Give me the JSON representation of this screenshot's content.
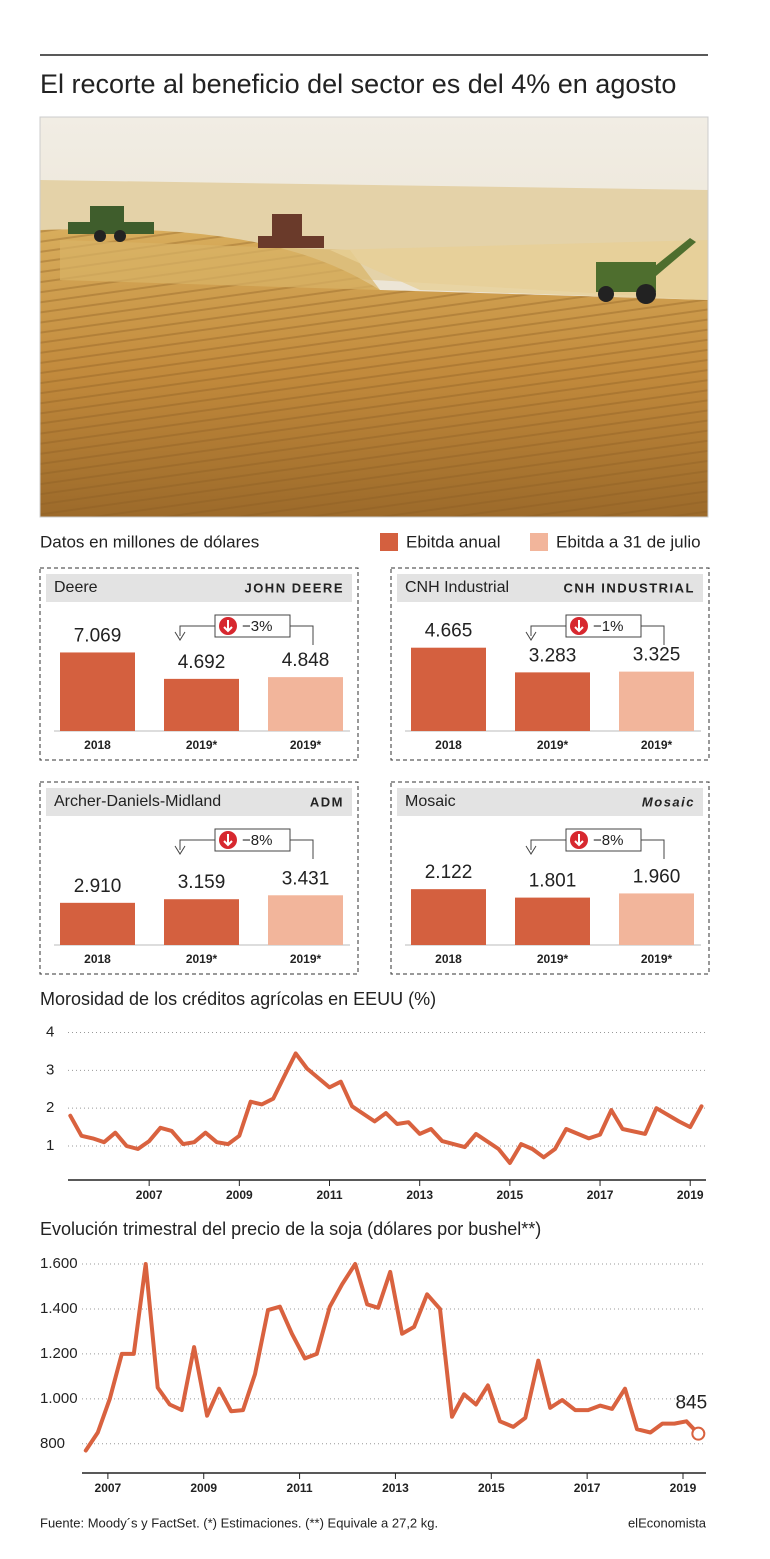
{
  "title": "El recorte al beneficio del sector es del 4% en agosto",
  "note": "Datos en millones de dólares",
  "legend": [
    {
      "name": "Ebitda anual",
      "color": "#d4603f"
    },
    {
      "name": "Ebitda a 31 de julio",
      "color": "#f2b59b"
    }
  ],
  "chart_data": [
    {
      "type": "bar",
      "title": "Deere",
      "logo": "JOHN DEERE",
      "categories": [
        "2018",
        "2019*",
        "2019*"
      ],
      "values": [
        7069,
        4692,
        4848
      ],
      "value_labels": [
        "7.069",
        "4.692",
        "4.848"
      ],
      "colors": [
        "#d4603f",
        "#d4603f",
        "#f2b59b"
      ],
      "annotation": "−3%",
      "ylim": [
        0,
        9000
      ]
    },
    {
      "type": "bar",
      "title": "CNH Industrial",
      "logo": "CNH INDUSTRIAL",
      "categories": [
        "2018",
        "2019*",
        "2019*"
      ],
      "values": [
        4665,
        3283,
        3325
      ],
      "value_labels": [
        "4.665",
        "3.283",
        "3.325"
      ],
      "colors": [
        "#d4603f",
        "#d4603f",
        "#f2b59b"
      ],
      "annotation": "−1%",
      "ylim": [
        0,
        5600
      ]
    },
    {
      "type": "bar",
      "title": "Archer-Daniels-Midland",
      "logo": "ADM",
      "categories": [
        "2018",
        "2019*",
        "2019*"
      ],
      "values": [
        2910,
        3159,
        3431
      ],
      "value_labels": [
        "2.910",
        "3.159",
        "3.431"
      ],
      "colors": [
        "#d4603f",
        "#d4603f",
        "#f2b59b"
      ],
      "annotation": "−8%",
      "ylim": [
        0,
        6900
      ]
    },
    {
      "type": "bar",
      "title": "Mosaic",
      "logo": "Mosaic",
      "categories": [
        "2018",
        "2019*",
        "2019*"
      ],
      "values": [
        2122,
        1801,
        1960
      ],
      "value_labels": [
        "2.122",
        "1.801",
        "1.960"
      ],
      "colors": [
        "#d4603f",
        "#d4603f",
        "#f2b59b"
      ],
      "annotation": "−8%",
      "ylim": [
        0,
        3800
      ]
    },
    {
      "type": "line",
      "title": "Morosidad de los créditos agrícolas en EEUU (%)",
      "x": [
        2005.25,
        2005.5,
        2005.75,
        2006,
        2006.25,
        2006.5,
        2006.75,
        2007,
        2007.25,
        2007.5,
        2007.75,
        2008,
        2008.25,
        2008.5,
        2008.75,
        2009,
        2009.25,
        2009.5,
        2009.75,
        2010,
        2010.25,
        2010.5,
        2011,
        2011.25,
        2011.5,
        2012,
        2012.25,
        2012.5,
        2012.75,
        2013,
        2013.25,
        2013.5,
        2014,
        2014.25,
        2014.75,
        2015,
        2015.25,
        2015.5,
        2015.75,
        2016,
        2016.25,
        2016.75,
        2017,
        2017.25,
        2017.5,
        2018,
        2018.25,
        2018.75,
        2019,
        2019.25
      ],
      "values": [
        1.8,
        1.27,
        1.2,
        1.1,
        1.35,
        1.0,
        0.92,
        1.13,
        1.48,
        1.4,
        1.05,
        1.1,
        1.35,
        1.1,
        1.05,
        1.27,
        2.17,
        2.1,
        2.25,
        2.85,
        3.45,
        3.05,
        2.55,
        2.7,
        2.05,
        1.65,
        1.87,
        1.58,
        1.63,
        1.32,
        1.45,
        1.13,
        0.97,
        1.32,
        0.92,
        0.55,
        1.05,
        0.92,
        0.7,
        0.92,
        1.45,
        1.2,
        1.3,
        1.95,
        1.45,
        1.32,
        2.0,
        1.65,
        1.5,
        2.05
      ],
      "color": "#d9623f",
      "xlim": [
        2005.2,
        2019.35
      ],
      "ylim": [
        0.1,
        4.2
      ],
      "xticks": [
        2007,
        2009,
        2011,
        2013,
        2015,
        2017,
        2019
      ],
      "yticks": [
        1,
        2,
        3,
        4
      ],
      "grid": true
    },
    {
      "type": "line",
      "title": "Evolución trimestral del precio de la soja (dólares por bushel**)",
      "x": [
        2006.54,
        2006.79,
        2007.04,
        2007.29,
        2007.54,
        2007.79,
        2008.04,
        2008.29,
        2008.54,
        2008.8,
        2009.07,
        2009.32,
        2009.57,
        2009.82,
        2010.07,
        2010.34,
        2010.59,
        2010.84,
        2011.11,
        2011.36,
        2011.63,
        2011.89,
        2012.16,
        2012.41,
        2012.64,
        2012.89,
        2013.14,
        2013.39,
        2013.66,
        2013.93,
        2014.18,
        2014.43,
        2014.68,
        2014.93,
        2015.18,
        2015.46,
        2015.71,
        2015.98,
        2016.23,
        2016.48,
        2016.75,
        2017.02,
        2017.27,
        2017.52,
        2017.79,
        2018.04,
        2018.32,
        2018.57,
        2018.82,
        2019.07,
        2019.32
      ],
      "values": [
        770,
        850,
        1000,
        1200,
        1200,
        1600,
        1050,
        975,
        950,
        1230,
        925,
        1045,
        945,
        950,
        1110,
        1395,
        1410,
        1290,
        1180,
        1200,
        1410,
        1510,
        1600,
        1420,
        1405,
        1565,
        1290,
        1320,
        1465,
        1400,
        920,
        1020,
        975,
        1060,
        900,
        875,
        915,
        1170,
        960,
        995,
        950,
        950,
        970,
        955,
        1045,
        865,
        850,
        890,
        890,
        900,
        845
      ],
      "color": "#d9623f",
      "xlim": [
        2006.46,
        2019.48
      ],
      "ylim": [
        670,
        1640
      ],
      "xticks": [
        2007,
        2009,
        2011,
        2013,
        2015,
        2017,
        2019
      ],
      "yticks": [
        800,
        {
          "value": 1000,
          "label": "1.000"
        },
        {
          "value": 1200,
          "label": "1.200"
        },
        {
          "value": 1400,
          "label": "1.400"
        },
        {
          "value": 1600,
          "label": "1.600"
        }
      ],
      "grid": true,
      "end_marker": true
    }
  ],
  "source": "Fuente: Moody´s y FactSet. (*) Estimaciones. (**) Equivale a 27,2 kg.",
  "brand": "elEconomista"
}
